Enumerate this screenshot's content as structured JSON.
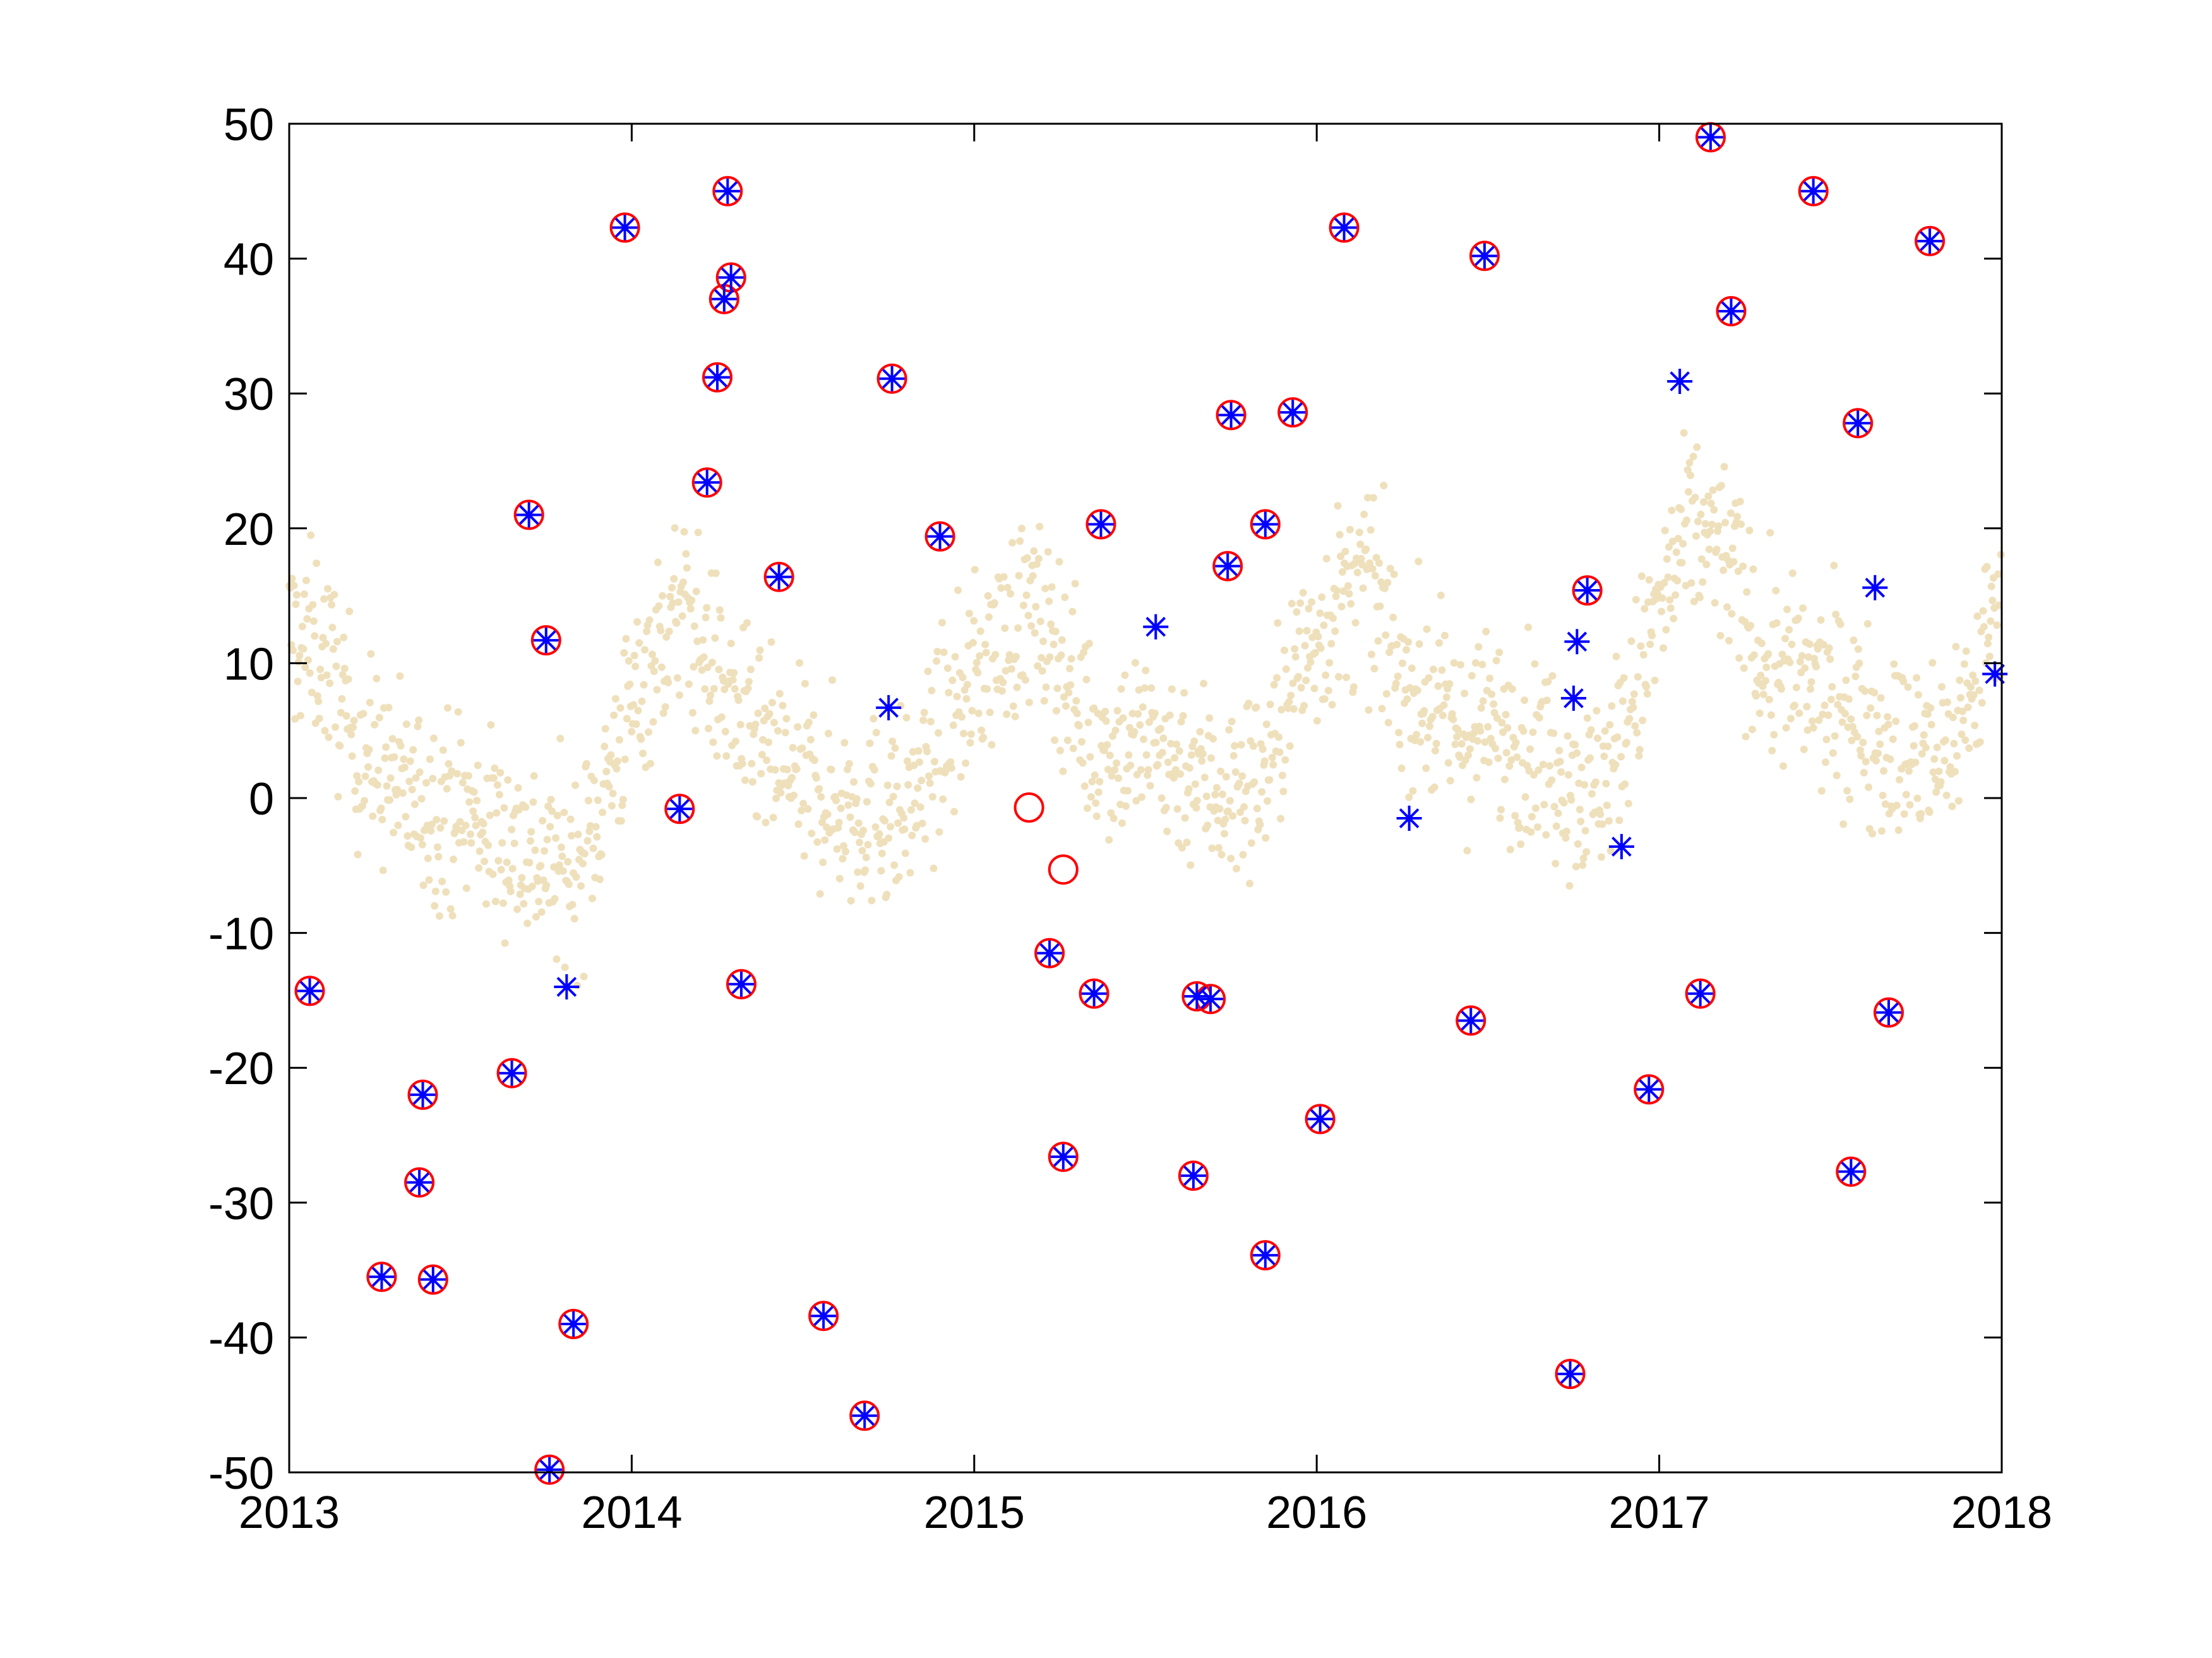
{
  "chart_data": {
    "type": "scatter",
    "title": "",
    "xlabel": "",
    "ylabel": "",
    "xlim": [
      2013,
      2018
    ],
    "ylim": [
      -50,
      50
    ],
    "x_ticks": [
      "2013",
      "2014",
      "2015",
      "2016",
      "2017",
      "2018"
    ],
    "y_ticks": [
      "-50",
      "-40",
      "-30",
      "-20",
      "-10",
      "0",
      "10",
      "20",
      "30",
      "40",
      "50"
    ],
    "grid": false,
    "legend": "none",
    "colors": {
      "background_points": "#efe0bc",
      "circle_markers": "#ff0000",
      "star_markers": "#0000ff",
      "axes": "#000000"
    },
    "series": [
      {
        "marker": "dot",
        "color": "#efe0bc",
        "description_of_shape": "dense daily background cloud with annual cycle",
        "trend": [
          [
            2013.0,
            12
          ],
          [
            2013.1,
            11
          ],
          [
            2013.2,
            4
          ],
          [
            2013.35,
            0
          ],
          [
            2013.5,
            -1
          ],
          [
            2013.65,
            -3
          ],
          [
            2013.75,
            -5
          ],
          [
            2013.85,
            -5
          ],
          [
            2013.95,
            3
          ],
          [
            2014.05,
            10
          ],
          [
            2014.15,
            14
          ],
          [
            2014.25,
            9
          ],
          [
            2014.35,
            4
          ],
          [
            2014.5,
            1
          ],
          [
            2014.65,
            -1
          ],
          [
            2014.8,
            -1
          ],
          [
            2014.9,
            4
          ],
          [
            2015.0,
            9
          ],
          [
            2015.15,
            14
          ],
          [
            2015.25,
            11
          ],
          [
            2015.35,
            4
          ],
          [
            2015.5,
            4
          ],
          [
            2015.65,
            2
          ],
          [
            2015.75,
            0
          ],
          [
            2015.85,
            2
          ],
          [
            2015.95,
            10
          ],
          [
            2016.05,
            14
          ],
          [
            2016.15,
            16
          ],
          [
            2016.25,
            9
          ],
          [
            2016.4,
            5
          ],
          [
            2016.55,
            5
          ],
          [
            2016.7,
            3
          ],
          [
            2016.8,
            0
          ],
          [
            2016.9,
            5
          ],
          [
            2017.0,
            14
          ],
          [
            2017.1,
            20
          ],
          [
            2017.2,
            18
          ],
          [
            2017.3,
            10
          ],
          [
            2017.45,
            8
          ],
          [
            2017.6,
            6
          ],
          [
            2017.72,
            3
          ],
          [
            2017.82,
            3
          ],
          [
            2017.92,
            8
          ],
          [
            2018.0,
            16
          ]
        ],
        "spread": 6
      },
      {
        "marker": "circle",
        "color": "#ff0000",
        "points": [
          [
            2013.06,
            -14.3
          ],
          [
            2013.27,
            -35.5
          ],
          [
            2013.38,
            -28.5
          ],
          [
            2013.39,
            -22.0
          ],
          [
            2013.42,
            -35.7
          ],
          [
            2013.65,
            -20.4
          ],
          [
            2013.7,
            21.0
          ],
          [
            2013.75,
            11.7
          ],
          [
            2013.76,
            -49.8
          ],
          [
            2013.83,
            -39.0
          ],
          [
            2013.98,
            42.3
          ],
          [
            2014.14,
            -0.8
          ],
          [
            2014.22,
            23.4
          ],
          [
            2014.25,
            31.2
          ],
          [
            2014.27,
            37.0
          ],
          [
            2014.28,
            45.0
          ],
          [
            2014.29,
            38.6
          ],
          [
            2014.32,
            -13.8
          ],
          [
            2014.43,
            16.4
          ],
          [
            2014.56,
            -38.4
          ],
          [
            2014.68,
            -45.8
          ],
          [
            2014.76,
            31.1
          ],
          [
            2014.9,
            19.4
          ],
          [
            2015.16,
            -0.7
          ],
          [
            2015.22,
            -11.5
          ],
          [
            2015.26,
            -5.3
          ],
          [
            2015.26,
            -26.6
          ],
          [
            2015.35,
            -14.5
          ],
          [
            2015.37,
            20.3
          ],
          [
            2015.64,
            -28.0
          ],
          [
            2015.65,
            -14.7
          ],
          [
            2015.69,
            -14.9
          ],
          [
            2015.74,
            17.2
          ],
          [
            2015.75,
            28.4
          ],
          [
            2015.85,
            -33.9
          ],
          [
            2015.85,
            20.3
          ],
          [
            2015.93,
            28.6
          ],
          [
            2016.01,
            -23.8
          ],
          [
            2016.08,
            42.3
          ],
          [
            2016.45,
            -16.5
          ],
          [
            2016.49,
            40.2
          ],
          [
            2016.74,
            -42.7
          ],
          [
            2016.79,
            15.4
          ],
          [
            2016.97,
            -21.6
          ],
          [
            2017.12,
            -14.5
          ],
          [
            2017.15,
            49.0
          ],
          [
            2017.21,
            36.1
          ],
          [
            2017.45,
            45.0
          ],
          [
            2017.56,
            -27.7
          ],
          [
            2017.58,
            27.8
          ],
          [
            2017.67,
            -15.9
          ],
          [
            2017.79,
            41.3
          ]
        ]
      },
      {
        "marker": "asterisk",
        "color": "#0000ff",
        "points": [
          [
            2013.06,
            -14.3
          ],
          [
            2013.27,
            -35.5
          ],
          [
            2013.38,
            -28.5
          ],
          [
            2013.39,
            -22.0
          ],
          [
            2013.42,
            -35.7
          ],
          [
            2013.65,
            -20.4
          ],
          [
            2013.7,
            21.0
          ],
          [
            2013.75,
            11.7
          ],
          [
            2013.76,
            -49.8
          ],
          [
            2013.81,
            -14.0
          ],
          [
            2013.83,
            -39.0
          ],
          [
            2013.98,
            42.3
          ],
          [
            2014.14,
            -0.8
          ],
          [
            2014.22,
            23.4
          ],
          [
            2014.25,
            31.2
          ],
          [
            2014.27,
            37.0
          ],
          [
            2014.28,
            45.0
          ],
          [
            2014.29,
            38.6
          ],
          [
            2014.32,
            -13.8
          ],
          [
            2014.43,
            16.4
          ],
          [
            2014.56,
            -38.4
          ],
          [
            2014.68,
            -45.8
          ],
          [
            2014.75,
            6.7
          ],
          [
            2014.76,
            31.1
          ],
          [
            2014.9,
            19.4
          ],
          [
            2015.22,
            -11.5
          ],
          [
            2015.26,
            -26.6
          ],
          [
            2015.35,
            -14.5
          ],
          [
            2015.37,
            20.3
          ],
          [
            2015.53,
            12.7
          ],
          [
            2015.64,
            -28.0
          ],
          [
            2015.65,
            -14.7
          ],
          [
            2015.69,
            -14.9
          ],
          [
            2015.74,
            17.2
          ],
          [
            2015.75,
            28.4
          ],
          [
            2015.85,
            -33.9
          ],
          [
            2015.85,
            20.3
          ],
          [
            2015.93,
            28.6
          ],
          [
            2016.01,
            -23.8
          ],
          [
            2016.08,
            42.3
          ],
          [
            2016.27,
            -1.5
          ],
          [
            2016.45,
            -16.5
          ],
          [
            2016.49,
            40.2
          ],
          [
            2016.74,
            -42.7
          ],
          [
            2016.75,
            7.4
          ],
          [
            2016.76,
            11.6
          ],
          [
            2016.79,
            15.4
          ],
          [
            2016.89,
            -3.6
          ],
          [
            2016.97,
            -21.6
          ],
          [
            2017.06,
            30.9
          ],
          [
            2017.12,
            -14.5
          ],
          [
            2017.15,
            49.0
          ],
          [
            2017.21,
            36.1
          ],
          [
            2017.45,
            45.0
          ],
          [
            2017.56,
            -27.7
          ],
          [
            2017.58,
            27.8
          ],
          [
            2017.63,
            15.6
          ],
          [
            2017.67,
            -15.9
          ],
          [
            2017.79,
            41.3
          ],
          [
            2017.98,
            9.2
          ]
        ]
      }
    ]
  }
}
